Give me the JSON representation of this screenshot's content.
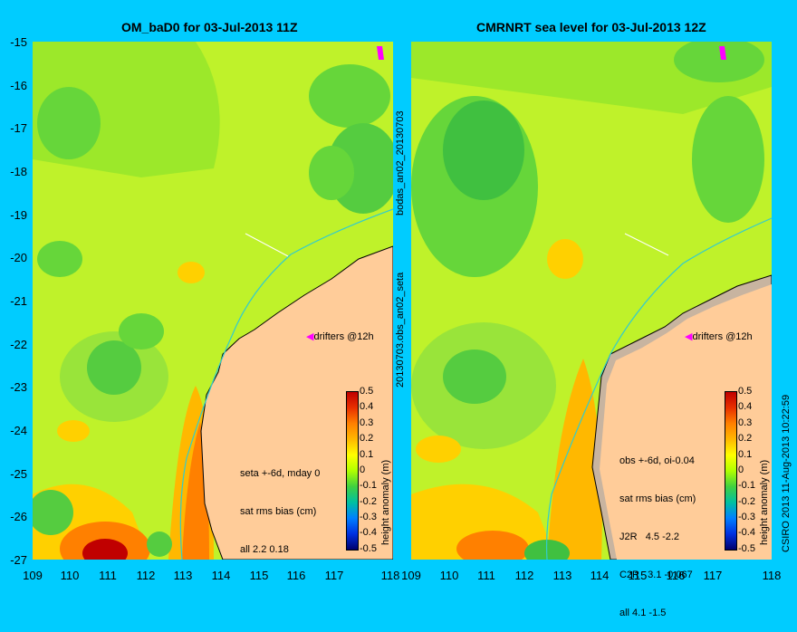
{
  "panels": [
    {
      "title": "OM_baD0 for 03-Jul-2013 11Z"
    },
    {
      "title": "CMRNRT sea level  for 03-Jul-2013 12Z"
    }
  ],
  "y_ticks": [
    "-15",
    "-16",
    "-17",
    "-18",
    "-19",
    "-20",
    "-21",
    "-22",
    "-23",
    "-24",
    "-25",
    "-26",
    "-27"
  ],
  "x_ticks": [
    "109",
    "110",
    "111",
    "112",
    "113",
    "114",
    "115",
    "116",
    "117",
    "118"
  ],
  "left_info": [
    "seta +-6d, mday 0",
    "sat rms bias (cm)",
    "all 2.2 0.18"
  ],
  "right_info": [
    "obs +-6d, oi-0.04",
    "sat rms bias (cm)",
    "J2R   4.5 -2.2",
    "C2R   3.1 -0.067",
    "all 4.1 -1.5"
  ],
  "drifters_label": "drifters @12h",
  "colorbar": {
    "label": "height anomaly (m)",
    "ticks": [
      "0.5",
      "0.4",
      "0.3",
      "0.2",
      "0.1",
      "0",
      "-0.1",
      "-0.2",
      "-0.3",
      "-0.4",
      "-0.5"
    ]
  },
  "vertical_texts": {
    "middle_top": "bodas_an02_20130703",
    "middle_bottom": "20130703.obs_an02_seta",
    "right_edge": "CSIRO 2013  11-Aug-2013 10:22:59"
  },
  "colors": {
    "background": "#00ccff",
    "land": "#ffcc99",
    "coast": "#000000",
    "drifter": "#ff00ff",
    "shelf_line": "#33cccc"
  }
}
